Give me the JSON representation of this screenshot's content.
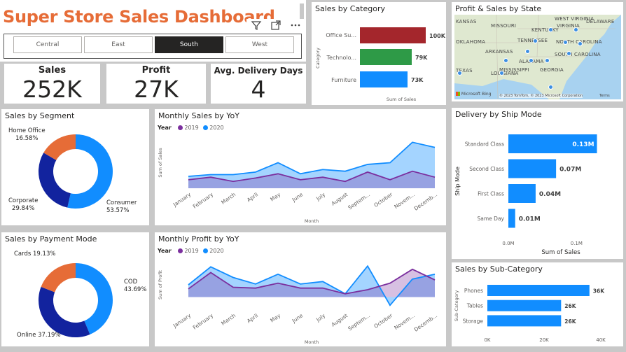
{
  "header": {
    "title": "Super Store Sales Dashboard",
    "icons": [
      "filter-icon",
      "focus-mode-icon",
      "more-options-icon"
    ]
  },
  "region_slicer": {
    "options": [
      "Central",
      "East",
      "South",
      "West"
    ],
    "selected": "South"
  },
  "kpis": [
    {
      "label": "Sales",
      "value": "252K"
    },
    {
      "label": "Profit",
      "value": "27K"
    },
    {
      "label": "Avg. Delivery Days",
      "value": "4"
    }
  ],
  "sales_by_category": {
    "title": "Sales by Category",
    "ylabel": "Category",
    "xlabel": "Sum of Sales",
    "categories": [
      "Office Su...",
      "Technolo...",
      "Furniture"
    ],
    "value_labels": [
      "100K",
      "79K",
      "73K"
    ],
    "colors": [
      "#a4262c",
      "#2e9a47",
      "#118dff"
    ]
  },
  "map": {
    "title": "Profit & Sales by State",
    "state_labels": [
      "KANSAS",
      "MISSOURI",
      "KENTUCKY",
      "WEST VIRGINIA",
      "VIRGINIA",
      "DELAWARE",
      "OKLAHOMA",
      "TENNESSEE",
      "ARKANSAS",
      "NORTH CAROLINA",
      "SOUTH CAROLINA",
      "ALABAMA",
      "MISSISSIPPI",
      "GEORGIA",
      "TEXAS",
      "LOUISIANA"
    ],
    "brand": "Microsoft Bing",
    "attribution": "© 2023 TomTom, © 2023 Microsoft Corporation",
    "terms": "Terms"
  },
  "segment": {
    "title": "Sales by Segment",
    "labels": [
      {
        "name": "Home Office",
        "pct": "16.58%"
      },
      {
        "name": "Corporate",
        "pct": "29.84%"
      },
      {
        "name": "Consumer",
        "pct": "53.57%"
      }
    ]
  },
  "payment": {
    "title": "Sales by Payment Mode",
    "labels": [
      {
        "text": "Cards 19.13%"
      },
      {
        "name": "COD",
        "pct": "43.69%"
      },
      {
        "text": "Online 37.19%"
      }
    ]
  },
  "monthly_sales": {
    "title": "Monthly Sales by YoY",
    "legend_title": "Year",
    "legend": [
      "2019",
      "2020"
    ],
    "ylabel": "Sum of Sales",
    "xlabel": "Month"
  },
  "monthly_profit": {
    "title": "Monthly Profit by YoY",
    "legend_title": "Year",
    "legend": [
      "2019",
      "2020"
    ],
    "ylabel": "Sum of Profit",
    "xlabel": "Month"
  },
  "ship_mode": {
    "title": "Delivery by Ship Mode",
    "ylabel": "Ship Mode",
    "xlabel": "Sum of Sales",
    "ticks": [
      "0.0M",
      "0.1M"
    ]
  },
  "sub_category": {
    "title": "Sales by Sub-Category",
    "ylabel": "Sub-Category",
    "ticks": [
      "0K",
      "20K",
      "40K"
    ]
  },
  "colors": {
    "title_orange": "#e66c37",
    "y2019": "#7b2f9e",
    "y2020": "#118dff",
    "navy": "#12239e",
    "blue": "#118dff"
  },
  "chart_data": [
    {
      "type": "bar",
      "title": "Sales by Category",
      "categories": [
        "Office Su...",
        "Technolo...",
        "Furniture"
      ],
      "values": [
        100,
        79,
        73
      ],
      "xlabel": "Sum of Sales",
      "ylabel": "Category"
    },
    {
      "type": "pie",
      "title": "Sales by Segment",
      "categories": [
        "Consumer",
        "Corporate",
        "Home Office"
      ],
      "values": [
        53.57,
        29.84,
        16.58
      ],
      "colors": [
        "#118dff",
        "#12239e",
        "#e66c37"
      ]
    },
    {
      "type": "pie",
      "title": "Sales by Payment Mode",
      "categories": [
        "COD",
        "Online",
        "Cards"
      ],
      "values": [
        43.69,
        37.19,
        19.13
      ],
      "colors": [
        "#118dff",
        "#12239e",
        "#e66c37"
      ]
    },
    {
      "type": "area",
      "title": "Monthly Sales by YoY",
      "categories": [
        "January",
        "February",
        "March",
        "April",
        "May",
        "June",
        "July",
        "August",
        "Septem...",
        "October",
        "Novem...",
        "Decemb..."
      ],
      "series": [
        {
          "name": "2019",
          "values": [
            10,
            13,
            8,
            12,
            17,
            10,
            13,
            8,
            19,
            10,
            20,
            13
          ]
        },
        {
          "name": "2020",
          "values": [
            14,
            16,
            16,
            19,
            30,
            17,
            22,
            20,
            28,
            30,
            54,
            48
          ]
        }
      ],
      "xlabel": "Month",
      "ylabel": "Sum of Sales",
      "ylim": [
        0,
        60
      ]
    },
    {
      "type": "area",
      "title": "Monthly Profit by YoY",
      "categories": [
        "January",
        "February",
        "March",
        "April",
        "May",
        "June",
        "July",
        "August",
        "Septem...",
        "October",
        "Novem...",
        "Decemb..."
      ],
      "series": [
        {
          "name": "2019",
          "values": [
            10,
            30,
            12,
            11,
            17,
            11,
            11,
            4,
            9,
            17,
            34,
            21
          ]
        },
        {
          "name": "2020",
          "values": [
            15,
            37,
            24,
            16,
            28,
            16,
            19,
            4,
            38,
            -10,
            22,
            28
          ]
        }
      ],
      "xlabel": "Month",
      "ylabel": "Sum of Profit",
      "ylim": [
        -15,
        45
      ]
    },
    {
      "type": "bar",
      "title": "Delivery by Ship Mode",
      "categories": [
        "Standard Class",
        "Second Class",
        "First Class",
        "Same Day"
      ],
      "values": [
        0.13,
        0.07,
        0.04,
        0.01
      ],
      "value_labels": [
        "0.13M",
        "0.07M",
        "0.04M",
        "0.01M"
      ],
      "xlabel": "Sum of Sales",
      "ylabel": "Ship Mode",
      "xlim": [
        0,
        0.15
      ]
    },
    {
      "type": "bar",
      "title": "Sales by Sub-Category",
      "categories": [
        "Phones",
        "Tables",
        "Storage"
      ],
      "values": [
        36,
        26,
        26
      ],
      "value_labels": [
        "36K",
        "26K",
        "26K"
      ],
      "ylabel": "Sub-Category",
      "xlim": [
        0,
        40
      ]
    }
  ]
}
